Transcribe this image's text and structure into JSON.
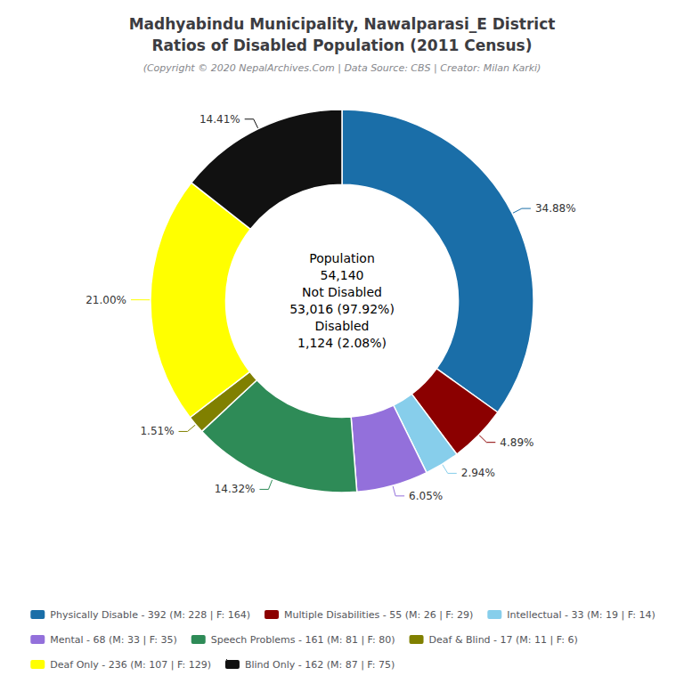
{
  "chart_data": {
    "type": "pie",
    "title": "Madhyabindu Municipality, Nawalparasi_E District\nRatios of Disabled Population (2011 Census)",
    "subtitle": "(Copyright © 2020 NepalArchives.Com | Data Source: CBS | Creator: Milan Karki)",
    "categories": [
      "Physically Disable - 392 (M: 228 | F: 164)",
      "Multiple Disabilities - 55 (M: 26 | F: 29)",
      "Intellectual - 33 (M: 19 | F: 14)",
      "Mental - 68 (M: 33 | F: 35)",
      "Speech Problems - 161 (M: 81 | F: 80)",
      "Deaf & Blind - 17 (M: 11 | F: 6)",
      "Deaf Only - 236 (M: 107 | F: 129)",
      "Blind Only - 162 (M: 87 | F: 75)"
    ],
    "values": [
      34.88,
      4.89,
      2.94,
      6.05,
      14.32,
      1.51,
      21.0,
      14.41
    ],
    "value_labels": [
      "34.88%",
      "4.89%",
      "2.94%",
      "6.05%",
      "14.32%",
      "1.51%",
      "21.00%",
      "14.41%"
    ],
    "colors": [
      "#1a6ea8",
      "#8b0000",
      "#87ceeb",
      "#9370db",
      "#2e8b57",
      "#808000",
      "#ffff00",
      "#111111"
    ],
    "data_labels": true,
    "legend": "bottom",
    "annotations": [
      "Population",
      "54,140",
      "Not Disabled",
      "53,016 (97.92%)",
      "Disabled",
      "1,124 (2.08%)"
    ]
  }
}
